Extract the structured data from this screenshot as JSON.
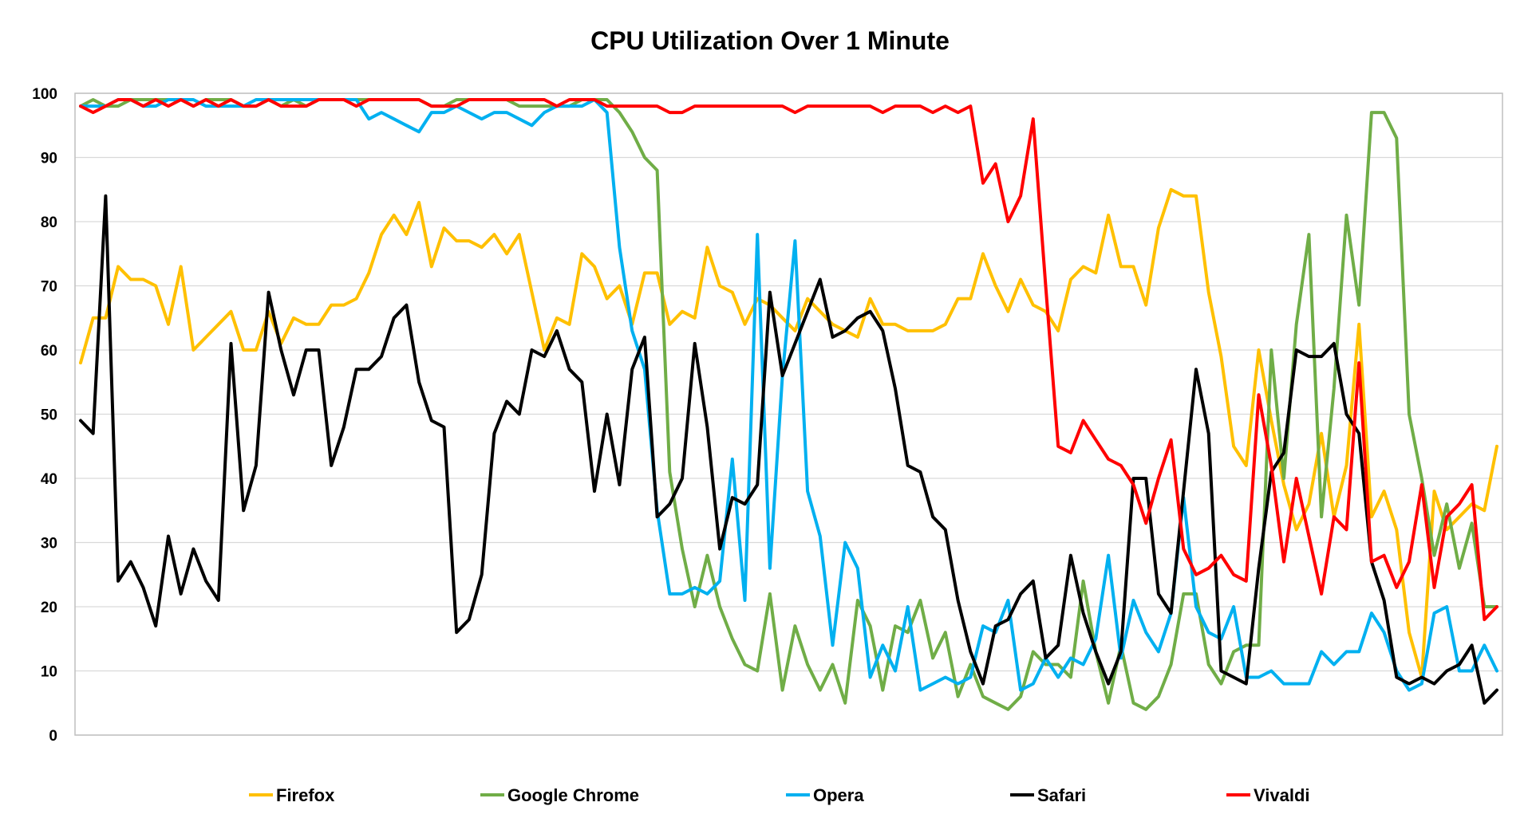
{
  "chart_data": {
    "type": "line",
    "title": "CPU Utilization Over 1 Minute",
    "xlabel": "",
    "ylabel": "",
    "ylim": [
      0,
      100
    ],
    "yticks": [
      "0",
      "10",
      "20",
      "30",
      "40",
      "50",
      "60",
      "70",
      "80",
      "90",
      "100"
    ],
    "grid": true,
    "legend_placement": "bottom",
    "series": [
      {
        "name": "Firefox",
        "color": "#FFC000",
        "values": [
          58,
          65,
          65,
          73,
          71,
          71,
          70,
          64,
          73,
          60,
          62,
          64,
          66,
          60,
          60,
          66,
          61,
          65,
          64,
          64,
          67,
          67,
          68,
          72,
          78,
          81,
          78,
          83,
          73,
          79,
          77,
          77,
          76,
          78,
          75,
          78,
          69,
          60,
          65,
          64,
          75,
          73,
          68,
          70,
          64,
          72,
          72,
          64,
          66,
          65,
          76,
          70,
          69,
          64,
          68,
          67,
          65,
          63,
          68,
          66,
          64,
          63,
          62,
          68,
          64,
          64,
          63,
          63,
          63,
          64,
          68,
          68,
          75,
          70,
          66,
          71,
          67,
          66,
          63,
          71,
          73,
          72,
          81,
          73,
          73,
          67,
          79,
          85,
          84,
          84,
          69,
          59,
          45,
          42,
          60,
          49,
          39,
          32,
          36,
          47,
          34,
          42,
          64,
          34,
          38,
          32,
          16,
          9,
          38,
          32,
          34,
          36,
          35,
          45
        ]
      },
      {
        "name": "Google Chrome",
        "color": "#70AD47",
        "values": [
          98,
          99,
          98,
          98,
          99,
          99,
          99,
          99,
          99,
          98,
          99,
          99,
          99,
          98,
          98,
          99,
          98,
          99,
          98,
          99,
          99,
          99,
          99,
          99,
          99,
          99,
          99,
          99,
          98,
          98,
          99,
          99,
          99,
          99,
          99,
          98,
          98,
          98,
          98,
          98,
          99,
          99,
          99,
          97,
          94,
          90,
          88,
          41,
          29,
          20,
          28,
          20,
          15,
          11,
          10,
          22,
          7,
          17,
          11,
          7,
          11,
          5,
          21,
          17,
          7,
          17,
          16,
          21,
          12,
          16,
          6,
          11,
          6,
          5,
          4,
          6,
          13,
          11,
          11,
          9,
          24,
          13,
          5,
          14,
          5,
          4,
          6,
          11,
          22,
          22,
          11,
          8,
          13,
          14,
          14,
          60,
          40,
          64,
          78,
          34,
          54,
          81,
          67,
          97,
          97,
          93,
          50,
          40,
          28,
          36,
          26,
          33,
          20,
          20
        ]
      },
      {
        "name": "Opera",
        "color": "#00B0F0",
        "values": [
          98,
          98,
          98,
          99,
          99,
          98,
          98,
          99,
          99,
          99,
          98,
          98,
          98,
          98,
          99,
          99,
          99,
          99,
          99,
          99,
          99,
          99,
          99,
          96,
          97,
          96,
          95,
          94,
          97,
          97,
          98,
          97,
          96,
          97,
          97,
          96,
          95,
          97,
          98,
          98,
          98,
          99,
          97,
          76,
          63,
          57,
          35,
          22,
          22,
          23,
          22,
          24,
          43,
          21,
          78,
          26,
          56,
          77,
          38,
          31,
          14,
          30,
          26,
          9,
          14,
          10,
          20,
          7,
          8,
          9,
          8,
          9,
          17,
          16,
          21,
          7,
          8,
          12,
          9,
          12,
          11,
          15,
          28,
          12,
          21,
          16,
          13,
          19,
          37,
          20,
          16,
          15,
          20,
          9,
          9,
          10,
          8,
          8,
          8,
          13,
          11,
          13,
          13,
          19,
          16,
          10,
          7,
          8,
          19,
          20,
          10,
          10,
          14,
          10
        ]
      },
      {
        "name": "Safari",
        "color": "#000000",
        "values": [
          49,
          47,
          84,
          24,
          27,
          23,
          17,
          31,
          22,
          29,
          24,
          21,
          61,
          35,
          42,
          69,
          60,
          53,
          60,
          60,
          42,
          48,
          57,
          57,
          59,
          65,
          67,
          55,
          49,
          48,
          16,
          18,
          25,
          47,
          52,
          50,
          60,
          59,
          63,
          57,
          55,
          38,
          50,
          39,
          57,
          62,
          34,
          36,
          40,
          61,
          48,
          29,
          37,
          36,
          39,
          69,
          56,
          61,
          66,
          71,
          62,
          63,
          65,
          66,
          63,
          54,
          42,
          41,
          34,
          32,
          21,
          13,
          8,
          17,
          18,
          22,
          24,
          12,
          14,
          28,
          19,
          13,
          8,
          13,
          40,
          40,
          22,
          19,
          38,
          57,
          47,
          10,
          9,
          8,
          26,
          41,
          44,
          60,
          59,
          59,
          61,
          50,
          47,
          27,
          21,
          9,
          8,
          9,
          8,
          10,
          11,
          14,
          5,
          7
        ]
      },
      {
        "name": "Vivaldi",
        "color": "#FF0000",
        "values": [
          98,
          97,
          98,
          99,
          99,
          98,
          99,
          98,
          99,
          98,
          99,
          98,
          99,
          98,
          98,
          99,
          98,
          98,
          98,
          99,
          99,
          99,
          98,
          99,
          99,
          99,
          99,
          99,
          98,
          98,
          98,
          99,
          99,
          99,
          99,
          99,
          99,
          99,
          98,
          99,
          99,
          99,
          98,
          98,
          98,
          98,
          98,
          97,
          97,
          98,
          98,
          98,
          98,
          98,
          98,
          98,
          98,
          97,
          98,
          98,
          98,
          98,
          98,
          98,
          97,
          98,
          98,
          98,
          97,
          98,
          97,
          98,
          86,
          89,
          80,
          84,
          96,
          70,
          45,
          44,
          49,
          46,
          43,
          42,
          39,
          33,
          40,
          46,
          29,
          25,
          26,
          28,
          25,
          24,
          53,
          42,
          27,
          40,
          31,
          22,
          34,
          32,
          58,
          27,
          28,
          23,
          27,
          39,
          23,
          34,
          36,
          39,
          18,
          20
        ]
      }
    ]
  }
}
